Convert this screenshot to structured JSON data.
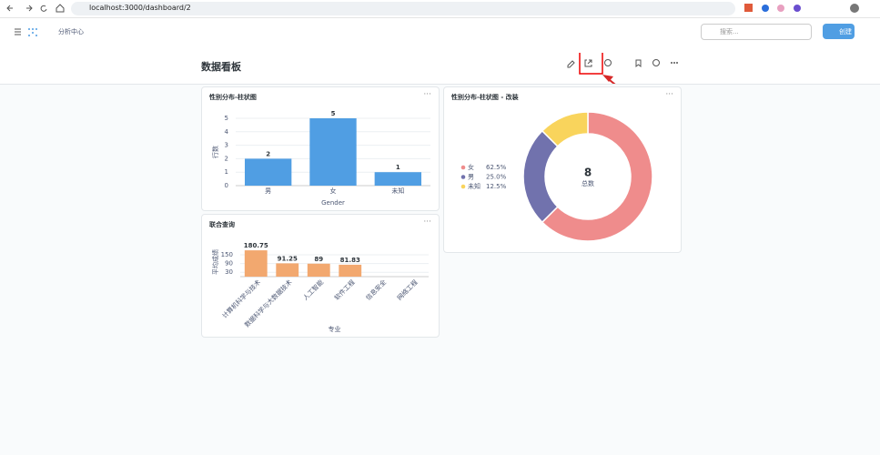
{
  "browser": {
    "url": "localhost:3000/dashboard/2"
  },
  "header": {
    "breadcrumb": "分析中心",
    "search_placeholder": "搜索...",
    "create_button": "创建"
  },
  "dashboard": {
    "title": "数据看板",
    "cards": [
      {
        "title": "性别分布-柱状图",
        "chart": {
          "type": "bar",
          "categories": [
            "男",
            "女",
            "未知"
          ],
          "values": [
            2,
            5,
            1
          ],
          "color": "#509ee3",
          "ylim": [
            0,
            5
          ],
          "yticks": [
            0,
            1,
            2,
            3,
            4,
            5
          ],
          "ylabel": "行数",
          "xlabel": "Gender",
          "grid": true,
          "rotate_labels": false
        }
      },
      {
        "title": "性别分布-柱状图 - 改装",
        "chart": {
          "type": "donut",
          "categories": [
            "女",
            "男",
            "未知"
          ],
          "values": [
            62.5,
            25.0,
            12.5
          ],
          "value_labels": [
            "62.5%",
            "25.0%",
            "12.5%"
          ],
          "colors": [
            "#ef8c8c",
            "#7172ad",
            "#f9d45c"
          ],
          "total": 8,
          "total_label": "总数"
        }
      },
      {
        "title": "联合查询",
        "chart": {
          "type": "bar",
          "categories": [
            "计算机科学与技术",
            "数据科学与大数据技术",
            "人工智能",
            "软件工程",
            "信息安全",
            "网络工程"
          ],
          "values": [
            180.75,
            91.25,
            89,
            81.83,
            null,
            null
          ],
          "color": "#f2a86f",
          "ylim": [
            0,
            200
          ],
          "yticks": [
            30,
            90,
            150
          ],
          "ylabel": "平均成绩",
          "xlabel": "专业",
          "grid": true,
          "rotate_labels": true
        }
      }
    ]
  }
}
